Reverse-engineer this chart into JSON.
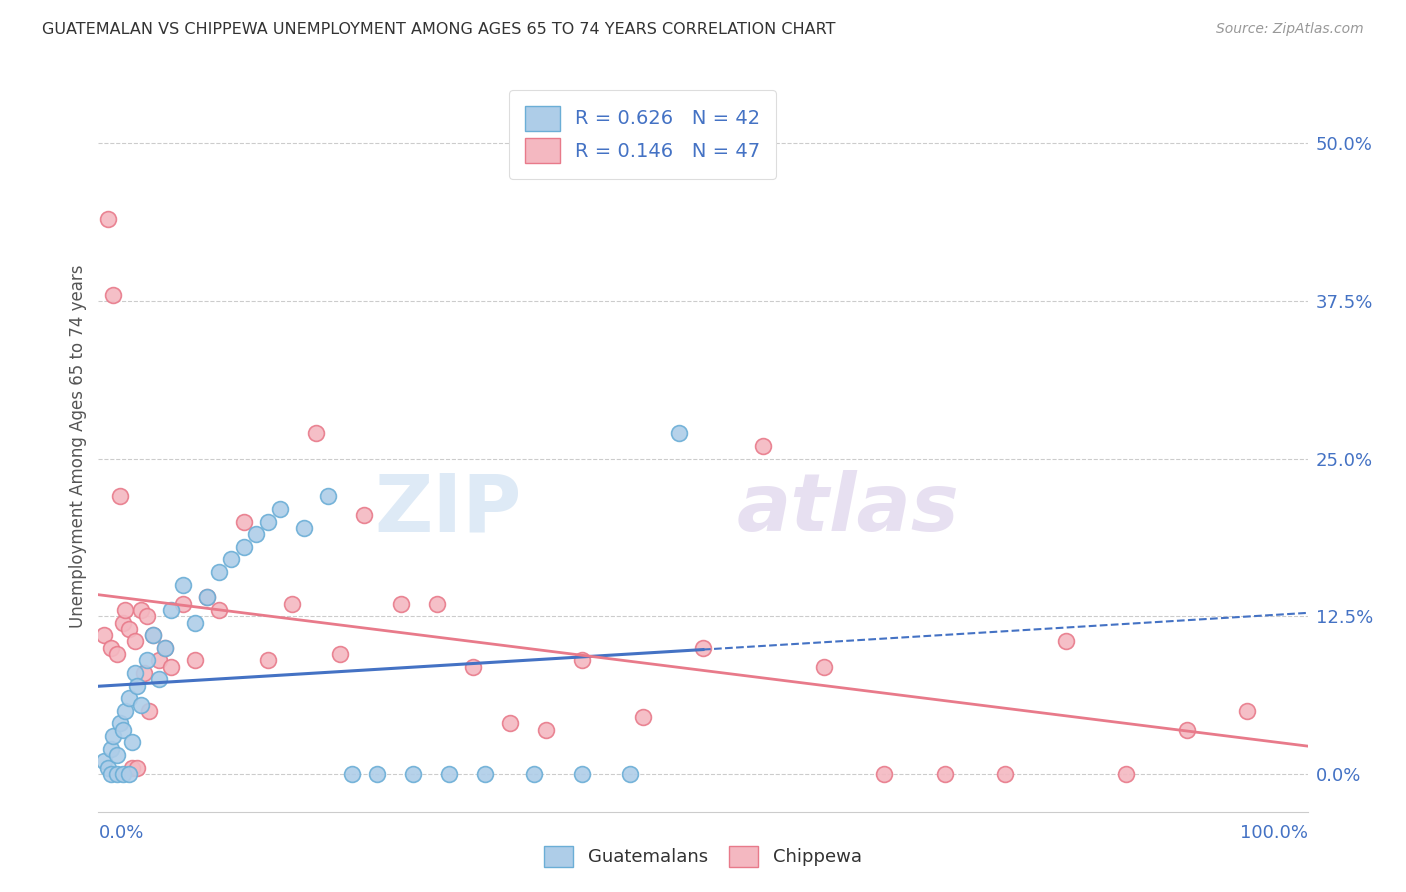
{
  "title": "GUATEMALAN VS CHIPPEWA UNEMPLOYMENT AMONG AGES 65 TO 74 YEARS CORRELATION CHART",
  "source": "Source: ZipAtlas.com",
  "ylabel": "Unemployment Among Ages 65 to 74 years",
  "ytick_values": [
    0.0,
    12.5,
    25.0,
    37.5,
    50.0
  ],
  "xlim": [
    0,
    100
  ],
  "ylim": [
    -3,
    55
  ],
  "blue_fill": "#aecde8",
  "blue_edge": "#6baed6",
  "pink_fill": "#f4b8c1",
  "pink_edge": "#e87a8a",
  "line_blue": "#4472c4",
  "line_pink": "#e87a8a",
  "r_guat": 0.626,
  "n_guat": 42,
  "r_chip": 0.146,
  "n_chip": 47,
  "guat_x": [
    0.5,
    0.8,
    1.0,
    1.2,
    1.5,
    1.8,
    2.0,
    2.2,
    2.5,
    2.8,
    3.0,
    3.2,
    3.5,
    4.0,
    4.5,
    5.0,
    5.5,
    6.0,
    7.0,
    8.0,
    9.0,
    10.0,
    11.0,
    12.0,
    13.0,
    14.0,
    15.0,
    17.0,
    19.0,
    21.0,
    23.0,
    26.0,
    29.0,
    32.0,
    36.0,
    40.0,
    44.0,
    48.0,
    1.0,
    1.5,
    2.0,
    2.5
  ],
  "guat_y": [
    1.0,
    0.5,
    2.0,
    3.0,
    1.5,
    4.0,
    3.5,
    5.0,
    6.0,
    2.5,
    8.0,
    7.0,
    5.5,
    9.0,
    11.0,
    7.5,
    10.0,
    13.0,
    15.0,
    12.0,
    14.0,
    16.0,
    17.0,
    18.0,
    19.0,
    20.0,
    21.0,
    19.5,
    22.0,
    0.0,
    0.0,
    0.0,
    0.0,
    0.0,
    0.0,
    0.0,
    0.0,
    27.0,
    0.0,
    0.0,
    0.0,
    0.0
  ],
  "chip_x": [
    0.5,
    1.0,
    1.5,
    2.0,
    2.5,
    3.0,
    3.5,
    4.0,
    4.5,
    5.0,
    5.5,
    6.0,
    7.0,
    8.0,
    9.0,
    10.0,
    12.0,
    14.0,
    16.0,
    18.0,
    20.0,
    22.0,
    25.0,
    28.0,
    31.0,
    34.0,
    37.0,
    40.0,
    45.0,
    50.0,
    55.0,
    60.0,
    65.0,
    70.0,
    75.0,
    80.0,
    85.0,
    90.0,
    95.0,
    0.8,
    1.2,
    1.8,
    2.2,
    2.8,
    3.2,
    3.8,
    4.2
  ],
  "chip_y": [
    11.0,
    10.0,
    9.5,
    12.0,
    11.5,
    10.5,
    13.0,
    12.5,
    11.0,
    9.0,
    10.0,
    8.5,
    13.5,
    9.0,
    14.0,
    13.0,
    20.0,
    9.0,
    13.5,
    27.0,
    9.5,
    20.5,
    13.5,
    13.5,
    8.5,
    4.0,
    3.5,
    9.0,
    4.5,
    10.0,
    26.0,
    8.5,
    0.0,
    0.0,
    0.0,
    10.5,
    0.0,
    3.5,
    5.0,
    44.0,
    38.0,
    22.0,
    13.0,
    0.5,
    0.5,
    8.0,
    5.0
  ]
}
